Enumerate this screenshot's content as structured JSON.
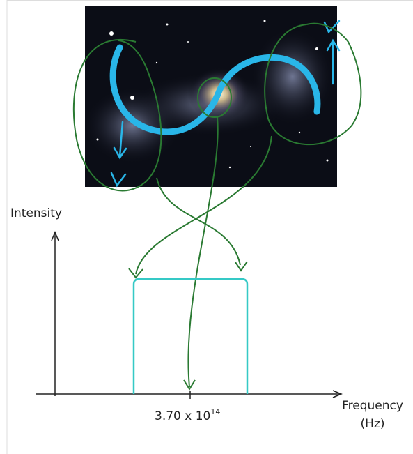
{
  "axes": {
    "y_label": "Intensity",
    "x_label": [
      "Frequency",
      "(Hz)"
    ]
  },
  "tick": {
    "mantissa": "3.70 x 10",
    "exponent": "14"
  }
}
